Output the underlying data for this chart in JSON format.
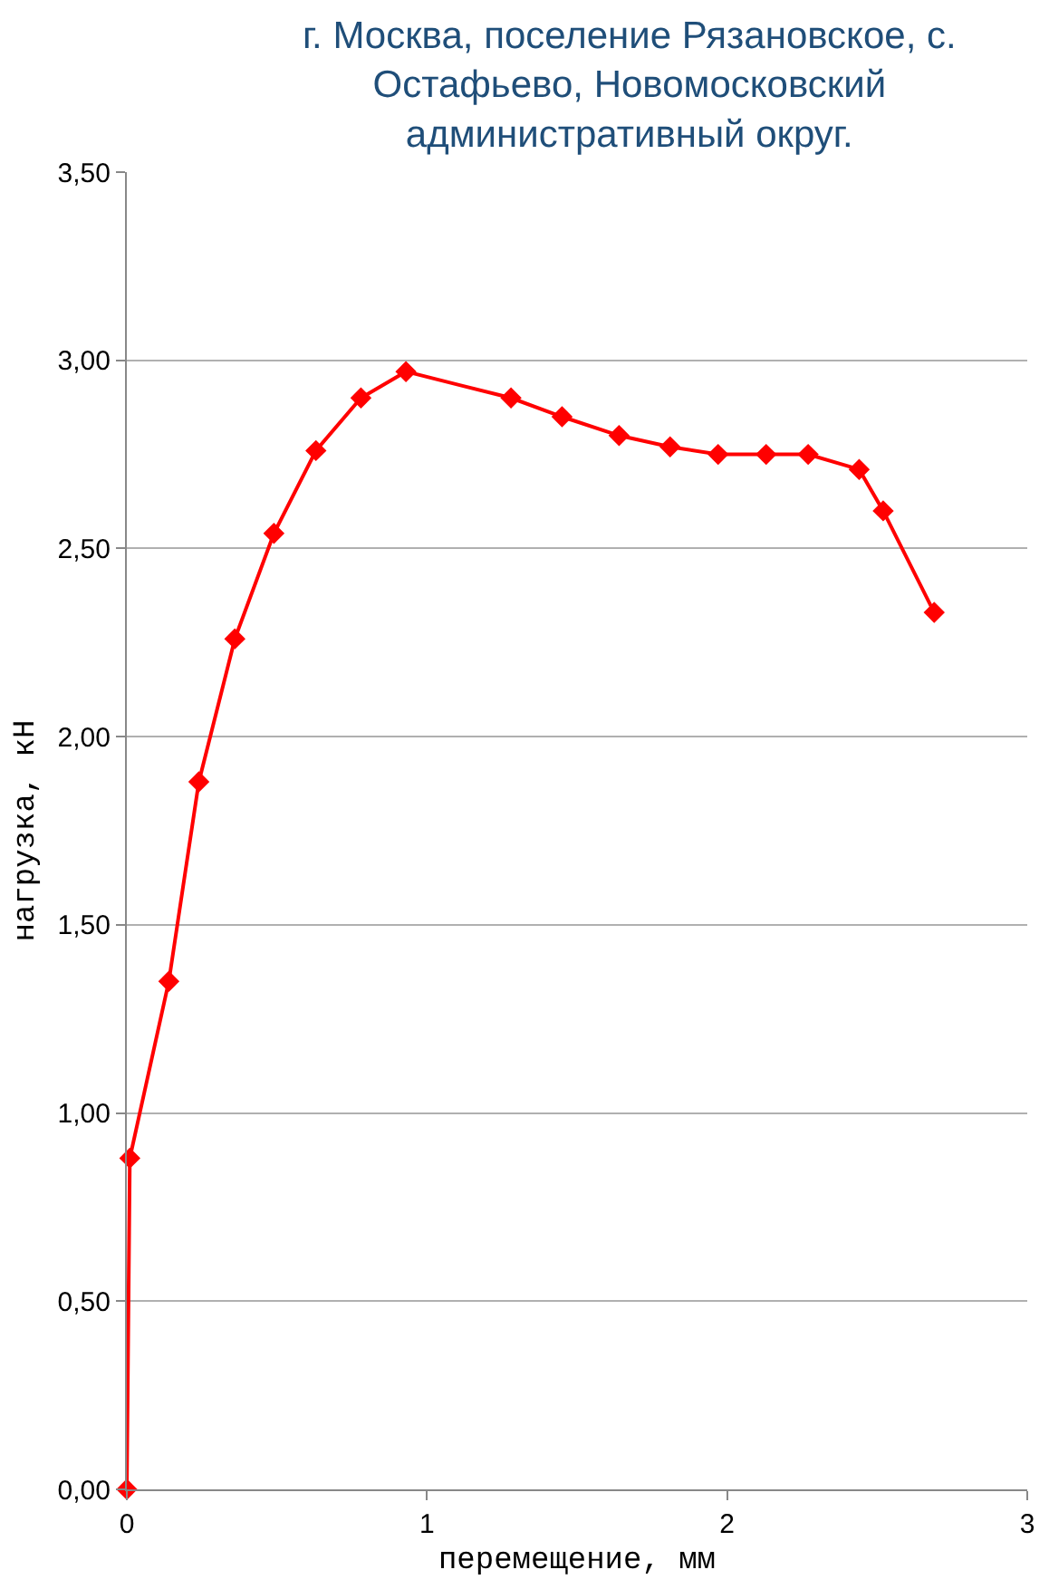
{
  "chart_data": {
    "type": "line",
    "title": "г. Москва, поселение Рязановское, с. Остафьево, Новомосковский административный округ.",
    "xlabel": "перемещение, мм",
    "ylabel": "нагрузка, кН",
    "x": [
      0,
      0.01,
      0.14,
      0.24,
      0.36,
      0.49,
      0.63,
      0.78,
      0.93,
      1.28,
      1.45,
      1.64,
      1.81,
      1.97,
      2.13,
      2.27,
      2.44,
      2.52,
      2.69
    ],
    "series": [
      {
        "color": "#ff0000",
        "values": [
          0,
          0.88,
          1.35,
          1.88,
          2.26,
          2.54,
          2.76,
          2.9,
          2.97,
          2.9,
          2.85,
          2.8,
          2.77,
          2.75,
          2.75,
          2.75,
          2.71,
          2.6,
          2.33
        ]
      }
    ],
    "xlim": [
      0,
      3
    ],
    "xticks": [
      0,
      1,
      2,
      3
    ],
    "ylim": [
      0,
      3.5
    ],
    "yticks": [
      {
        "value": 0,
        "label": "0,00"
      },
      {
        "value": 0.5,
        "label": "0,50"
      },
      {
        "value": 1,
        "label": "1,00"
      },
      {
        "value": 1.5,
        "label": "1,50"
      },
      {
        "value": 2,
        "label": "2,00"
      },
      {
        "value": 2.5,
        "label": "2,50"
      },
      {
        "value": 3,
        "label": "3,00"
      },
      {
        "value": 3.5,
        "label": "3,50"
      }
    ],
    "grid": "y",
    "marker": "diamond",
    "line_style": "solid"
  }
}
